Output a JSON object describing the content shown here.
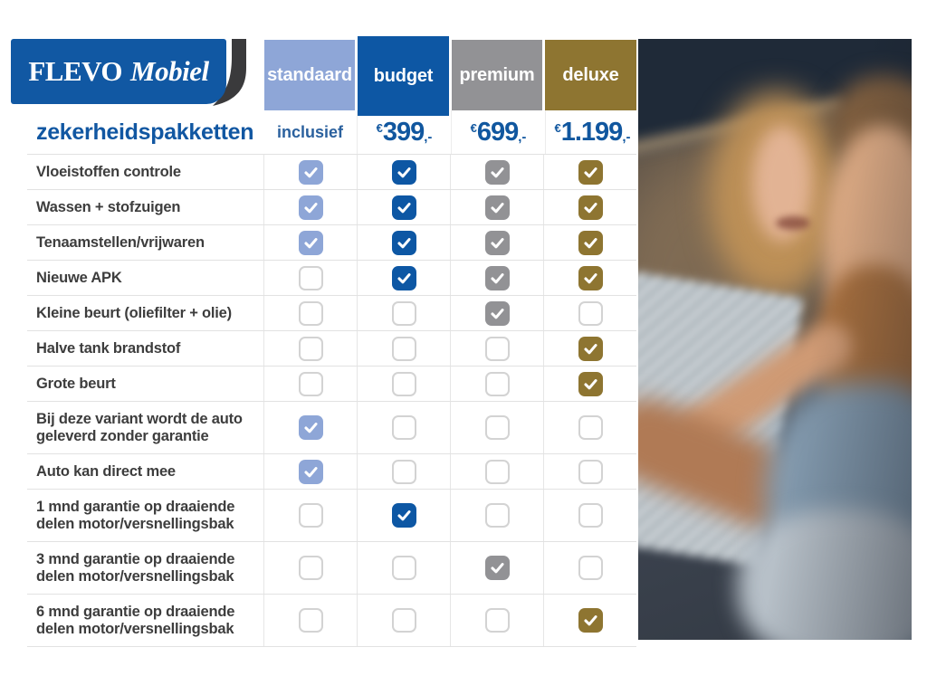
{
  "brand": {
    "name_primary": "FLEVO",
    "name_secondary": "Mobiel",
    "logo_bg_color": "#1158a3",
    "swoosh_color": "#3a3a3c"
  },
  "subtitle": "zekerheidspakketten",
  "accent_text_color": "#1157a2",
  "columns": [
    {
      "id": "standaard",
      "label": "standaard",
      "color": "#8ea6d7",
      "price": {
        "text": "inclusief"
      }
    },
    {
      "id": "budget",
      "label": "budget",
      "color": "#0d57a4",
      "price": {
        "currency": "€",
        "amount": "399",
        "suffix": ",-"
      }
    },
    {
      "id": "premium",
      "label": "premium",
      "color": "#929295",
      "price": {
        "currency": "€",
        "amount": "699",
        "suffix": ",-"
      }
    },
    {
      "id": "deluxe",
      "label": "deluxe",
      "color": "#8e7531",
      "price": {
        "currency": "€",
        "amount": "1.199",
        "suffix": ",-"
      }
    }
  ],
  "rows": [
    {
      "label": "Vloeistoffen controle",
      "checks": [
        true,
        true,
        true,
        true
      ]
    },
    {
      "label": "Wassen + stofzuigen",
      "checks": [
        true,
        true,
        true,
        true
      ]
    },
    {
      "label": "Tenaamstellen/vrijwaren",
      "checks": [
        true,
        true,
        true,
        true
      ]
    },
    {
      "label": "Nieuwe APK",
      "checks": [
        false,
        true,
        true,
        true
      ]
    },
    {
      "label": "Kleine beurt (oliefilter + olie)",
      "checks": [
        false,
        false,
        true,
        false
      ]
    },
    {
      "label": "Halve tank brandstof",
      "checks": [
        false,
        false,
        false,
        true
      ]
    },
    {
      "label": "Grote beurt",
      "checks": [
        false,
        false,
        false,
        true
      ]
    },
    {
      "label": "Bij deze variant wordt de auto geleverd zonder garantie",
      "checks": [
        true,
        false,
        false,
        false
      ]
    },
    {
      "label": "Auto kan direct mee",
      "checks": [
        true,
        false,
        false,
        false
      ]
    },
    {
      "label": "1 mnd garantie op draaiende delen motor/versnellingsbak",
      "checks": [
        false,
        true,
        false,
        false
      ]
    },
    {
      "label": "3 mnd garantie op draaiende delen motor/versnellingsbak",
      "checks": [
        false,
        false,
        true,
        false
      ]
    },
    {
      "label": "6 mnd garantie op draaiende delen motor/versnellingsbak",
      "checks": [
        false,
        false,
        false,
        true
      ]
    }
  ]
}
